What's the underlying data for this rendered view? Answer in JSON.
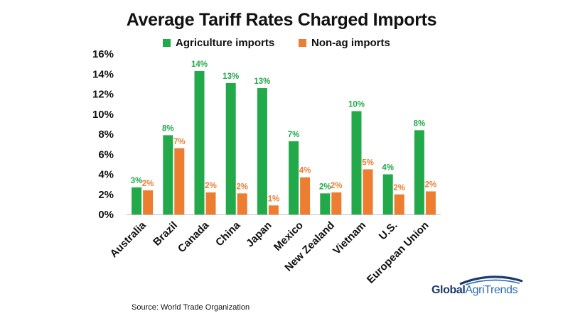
{
  "chart_data": {
    "type": "bar",
    "title": "Average Tariff Rates Charged Imports",
    "categories": [
      "Australia",
      "Brazil",
      "Canada",
      "China",
      "Japan",
      "Mexico",
      "New Zealand",
      "Vietnam",
      "U.S.",
      "European Union"
    ],
    "series": [
      {
        "name": "Agriculture imports",
        "color": "#22a94a",
        "values": [
          2.7,
          7.9,
          14.3,
          13.1,
          12.6,
          7.3,
          2.1,
          10.3,
          4.0,
          8.4
        ],
        "labels": [
          "3%",
          "8%",
          "14%",
          "13%",
          "13%",
          "7%",
          "2%",
          "10%",
          "4%",
          "8%"
        ]
      },
      {
        "name": "Non-ag imports",
        "color": "#ed7d31",
        "values": [
          2.4,
          6.6,
          2.2,
          2.1,
          0.9,
          3.7,
          2.2,
          4.5,
          2.0,
          2.3
        ],
        "labels": [
          "2%",
          "7%",
          "2%",
          "2%",
          "1%",
          "4%",
          "2%",
          "5%",
          "2%",
          "2%"
        ]
      }
    ],
    "ylim": [
      0,
      16
    ],
    "yticks": [
      0,
      2,
      4,
      6,
      8,
      10,
      12,
      14,
      16
    ],
    "ytick_labels": [
      "0%",
      "2%",
      "4%",
      "6%",
      "8%",
      "10%",
      "12%",
      "14%",
      "16%"
    ],
    "xlabel": "",
    "ylabel": "",
    "grid": false,
    "legend_position": "top-center"
  },
  "source": "Source: World Trade Organization",
  "logo": {
    "word1": "Global",
    "word2": "AgriTrends",
    "colors": [
      "#1b3a6b",
      "#2b6cb0"
    ]
  }
}
